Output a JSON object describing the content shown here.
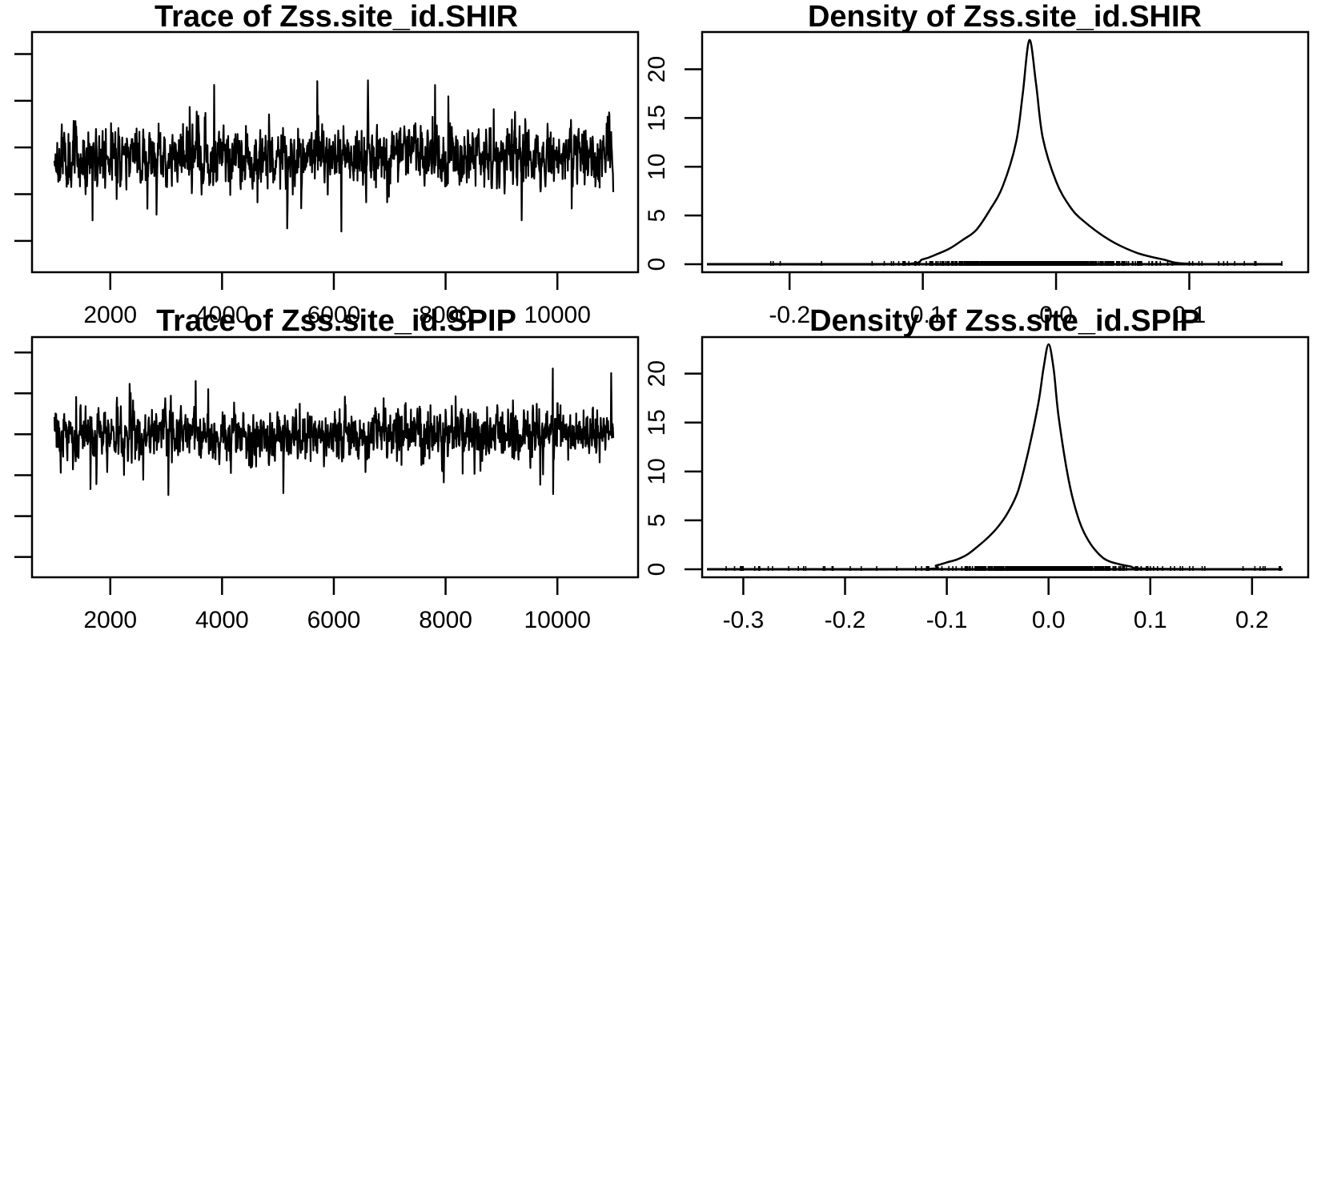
{
  "chart_data": [
    {
      "type": "line",
      "title": "Trace of Zss.site_id.SHIR",
      "xlabel": "",
      "ylabel": "",
      "xlim": [
        1001,
        11000
      ],
      "ylim": [
        -0.25,
        0.23
      ],
      "x_ticks": [
        "2000",
        "4000",
        "6000",
        "8000",
        "10000"
      ],
      "y_ticks_labels_visible": false,
      "series": [
        {
          "x_start": 1001,
          "x_end": 11000,
          "center": -0.02,
          "sd": 0.03,
          "min": -0.25,
          "max": 0.22
        }
      ]
    },
    {
      "type": "line",
      "title": "Density of Zss.site_id.SHIR",
      "xlabel": "",
      "ylabel": "",
      "xlim": [
        -0.25,
        0.17
      ],
      "ylim": [
        0,
        23
      ],
      "x_ticks": [
        "-0.2",
        "-0.1",
        "0.0",
        "0.1"
      ],
      "y_ticks": [
        "0",
        "5",
        "10",
        "15",
        "20"
      ],
      "rug": true,
      "series": [
        {
          "x": [
            -0.25,
            -0.12,
            -0.1,
            -0.09,
            -0.08,
            -0.07,
            -0.06,
            -0.05,
            -0.04,
            -0.03,
            -0.025,
            -0.02,
            -0.015,
            -0.01,
            0.0,
            0.01,
            0.02,
            0.04,
            0.06,
            0.08,
            0.1,
            0.17
          ],
          "y": [
            0,
            0,
            0.5,
            1.0,
            1.6,
            2.5,
            3.5,
            5.5,
            8.0,
            12.5,
            17.5,
            23.0,
            18.5,
            13.0,
            8.5,
            6.0,
            4.5,
            2.5,
            1.2,
            0.5,
            0.05,
            0
          ]
        }
      ]
    },
    {
      "type": "line",
      "title": "Trace of Zss.site_id.SPIP",
      "xlabel": "",
      "ylabel": "",
      "xlim": [
        1001,
        11000
      ],
      "ylim": [
        -0.33,
        0.22
      ],
      "x_ticks": [
        "2000",
        "4000",
        "6000",
        "8000",
        "10000"
      ],
      "y_ticks_labels_visible": false,
      "series": [
        {
          "x_start": 1001,
          "x_end": 11000,
          "center": 0.0,
          "sd": 0.03,
          "min": -0.32,
          "max": 0.22
        }
      ]
    },
    {
      "type": "line",
      "title": "Density of Zss.site_id.SPIP",
      "xlabel": "",
      "ylabel": "",
      "xlim": [
        -0.32,
        0.23
      ],
      "ylim": [
        0,
        23
      ],
      "x_ticks": [
        "-0.3",
        "-0.2",
        "-0.1",
        "0.0",
        "0.1",
        "0.2"
      ],
      "y_ticks": [
        "0",
        "5",
        "10",
        "15",
        "20"
      ],
      "rug": true,
      "series": [
        {
          "x": [
            -0.32,
            -0.13,
            -0.11,
            -0.1,
            -0.09,
            -0.08,
            -0.07,
            -0.06,
            -0.05,
            -0.04,
            -0.03,
            -0.02,
            -0.01,
            -0.005,
            0.0,
            0.005,
            0.01,
            0.02,
            0.03,
            0.04,
            0.05,
            0.06,
            0.08,
            0.1,
            0.23
          ],
          "y": [
            0,
            0,
            0.4,
            0.7,
            1.0,
            1.5,
            2.3,
            3.2,
            4.3,
            5.8,
            8.0,
            12.0,
            17.0,
            20.5,
            23.0,
            20.5,
            15.5,
            9.0,
            5.0,
            2.8,
            1.5,
            0.8,
            0.3,
            0.05,
            0
          ]
        }
      ]
    }
  ]
}
